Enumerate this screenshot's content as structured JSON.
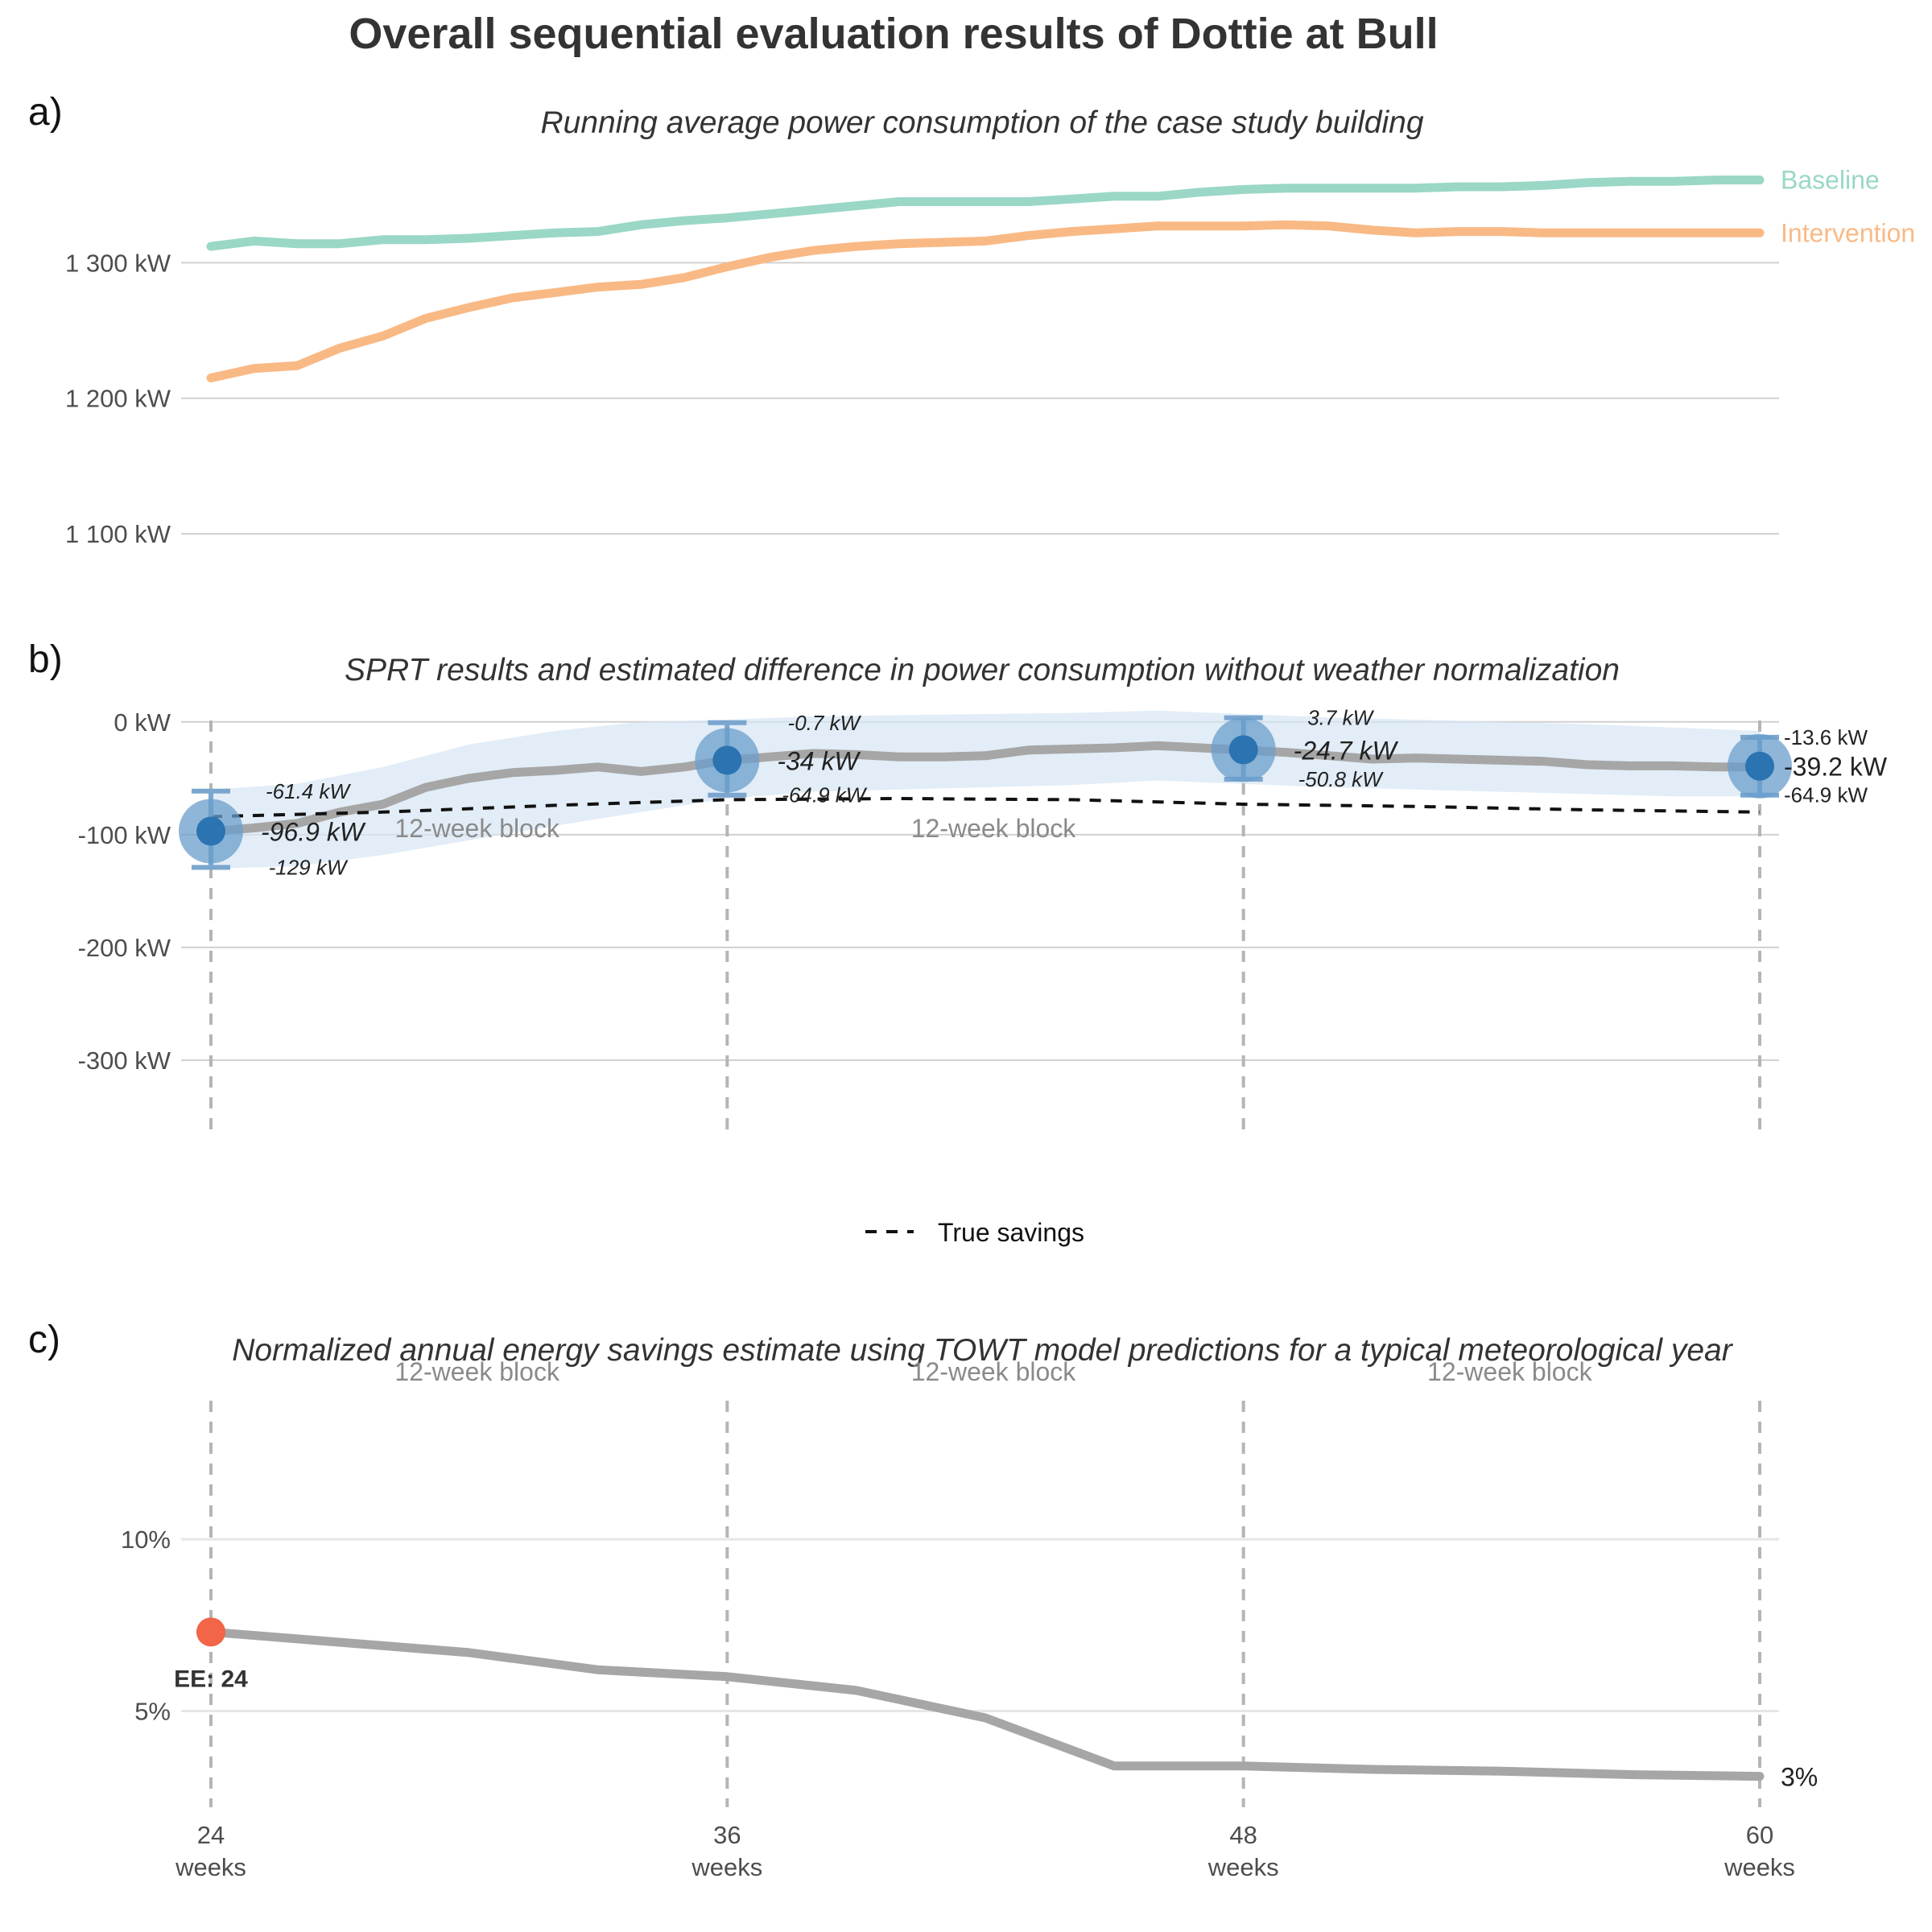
{
  "figure": {
    "title": "Overall sequential evaluation results of Dottie at Bull",
    "panel_tags": [
      "a)",
      "b)",
      "c)"
    ],
    "colors": {
      "baseline": "#9ad7c6",
      "intervention": "#f9b985",
      "estimate_line": "#a6a6a6",
      "ribbon": "#d5e6f3",
      "point_inner": "#2b73b1",
      "point_outer": "#6a9dcb",
      "errorbar": "#7aa6cf",
      "true_savings": "#111111",
      "ee_point": "#f26546",
      "savings_line": "#a6a6a6"
    }
  },
  "chart_data": [
    {
      "type": "line",
      "subtitle": "Running average power consumption of the case study building",
      "x_range": [
        24,
        60
      ],
      "ylim": [
        1090,
        1375
      ],
      "y_ticks": [
        1100,
        1200,
        1300
      ],
      "y_tick_labels": [
        "1 100 kW",
        "1 200 kW",
        "1 300 kW"
      ],
      "grid": true,
      "legend": "direct-labels-right",
      "series": [
        {
          "name": "Baseline",
          "x": [
            24,
            25,
            26,
            27,
            28,
            29,
            30,
            31,
            32,
            33,
            34,
            35,
            36,
            37,
            38,
            39,
            40,
            41,
            42,
            43,
            44,
            45,
            46,
            47,
            48,
            49,
            50,
            51,
            52,
            53,
            54,
            55,
            56,
            57,
            58,
            59,
            60
          ],
          "y": [
            1312,
            1316,
            1314,
            1314,
            1317,
            1317,
            1318,
            1320,
            1322,
            1323,
            1328,
            1331,
            1333,
            1336,
            1339,
            1342,
            1345,
            1345,
            1345,
            1345,
            1347,
            1349,
            1349,
            1352,
            1354,
            1355,
            1355,
            1355,
            1355,
            1356,
            1356,
            1357,
            1359,
            1360,
            1360,
            1361,
            1361
          ]
        },
        {
          "name": "Intervention",
          "x": [
            24,
            25,
            26,
            27,
            28,
            29,
            30,
            31,
            32,
            33,
            34,
            35,
            36,
            37,
            38,
            39,
            40,
            41,
            42,
            43,
            44,
            45,
            46,
            47,
            48,
            49,
            50,
            51,
            52,
            53,
            54,
            55,
            56,
            57,
            58,
            59,
            60
          ],
          "y": [
            1215,
            1222,
            1224,
            1237,
            1246,
            1259,
            1267,
            1274,
            1278,
            1282,
            1284,
            1289,
            1297,
            1304,
            1309,
            1312,
            1314,
            1315,
            1316,
            1320,
            1323,
            1325,
            1327,
            1327,
            1327,
            1328,
            1327,
            1324,
            1322,
            1323,
            1323,
            1322,
            1322,
            1322,
            1322,
            1322,
            1322
          ]
        }
      ]
    },
    {
      "type": "line",
      "subtitle": "SPRT results and estimated difference in power consumption without weather normalization",
      "x_range": [
        24,
        60
      ],
      "ylim": [
        -370,
        12
      ],
      "y_ticks": [
        0,
        -100,
        -200,
        -300
      ],
      "y_tick_labels": [
        "0 kW",
        "-100 kW",
        "-200 kW",
        "-300 kW"
      ],
      "grid": true,
      "block_label": "12-week block",
      "legend": "bottom",
      "legend_label": "True savings",
      "estimate_line": {
        "x": [
          24,
          25,
          26,
          27,
          28,
          29,
          30,
          31,
          32,
          33,
          34,
          35,
          36,
          37,
          38,
          39,
          40,
          41,
          42,
          43,
          44,
          45,
          46,
          47,
          48,
          49,
          50,
          51,
          52,
          53,
          54,
          55,
          56,
          57,
          58,
          59,
          60
        ],
        "y": [
          -97,
          -94,
          -90,
          -80,
          -73,
          -58,
          -50,
          -45,
          -43,
          -40,
          -44,
          -40,
          -34,
          -31,
          -28,
          -29,
          -31,
          -31,
          -30,
          -25,
          -24,
          -23,
          -21,
          -23,
          -25,
          -27,
          -30,
          -33,
          -32,
          -33,
          -34,
          -35,
          -38,
          -39,
          -39,
          -40,
          -40
        ]
      },
      "ribbon": {
        "x": [
          24,
          26,
          28,
          30,
          32,
          34,
          36,
          38,
          40,
          42,
          44,
          46,
          48,
          50,
          52,
          54,
          56,
          58,
          60
        ],
        "lower": [
          -130,
          -128,
          -118,
          -105,
          -92,
          -80,
          -68,
          -62,
          -60,
          -58,
          -56,
          -52,
          -55,
          -58,
          -60,
          -62,
          -64,
          -66,
          -66
        ],
        "upper": [
          -60,
          -55,
          -40,
          -20,
          -8,
          0,
          2,
          5,
          6,
          7,
          8,
          10,
          7,
          4,
          2,
          0,
          -2,
          -5,
          -8
        ]
      },
      "true_savings": {
        "x": [
          24,
          28,
          32,
          36,
          40,
          44,
          48,
          52,
          56,
          60
        ],
        "y": [
          -84,
          -80,
          -74,
          -69,
          -68,
          -69,
          -73,
          -75,
          -78,
          -80
        ]
      },
      "sprt_points": [
        {
          "x": 24,
          "estimate": -96.9,
          "lower": -129,
          "upper": -61.4,
          "estimate_label": "-96.9 kW",
          "lower_label": "-129 kW",
          "upper_label": "-61.4 kW"
        },
        {
          "x": 36,
          "estimate": -34,
          "lower": -64.9,
          "upper": -0.7,
          "estimate_label": "-34 kW",
          "lower_label": "-64.9 kW",
          "upper_label": "-0.7 kW"
        },
        {
          "x": 48,
          "estimate": -24.7,
          "lower": -50.8,
          "upper": 3.7,
          "estimate_label": "-24.7 kW",
          "lower_label": "-50.8 kW",
          "upper_label": "3.7 kW"
        },
        {
          "x": 60,
          "estimate": -39.2,
          "lower": -64.9,
          "upper": -13.6,
          "estimate_label": "-39.2 kW",
          "lower_label": "-64.9 kW",
          "upper_label": "-13.6 kW"
        }
      ]
    },
    {
      "type": "line",
      "subtitle": "Normalized annual energy savings estimate using TOWT model predictions for a typical meteorological year",
      "x_range": [
        24,
        60
      ],
      "ylim": [
        2.2,
        14.5
      ],
      "y_ticks": [
        5,
        10
      ],
      "y_tick_labels": [
        "5%",
        "10%"
      ],
      "x_ticks": [
        24,
        36,
        48,
        60
      ],
      "x_tick_labels": [
        "24",
        "36",
        "48",
        "60"
      ],
      "x_tick_unit": "weeks",
      "grid": true,
      "block_label": "12-week block",
      "series": [
        {
          "x": [
            24,
            27,
            30,
            33,
            36,
            39,
            42,
            45,
            48,
            51,
            54,
            57,
            60
          ],
          "y": [
            7.3,
            7.0,
            6.7,
            6.2,
            6.0,
            5.6,
            4.8,
            3.4,
            3.4,
            3.3,
            3.25,
            3.15,
            3.1
          ]
        }
      ],
      "end_label": "3%",
      "ee_point": {
        "x": 24,
        "y": 7.3,
        "label": "EE: 24"
      }
    }
  ]
}
